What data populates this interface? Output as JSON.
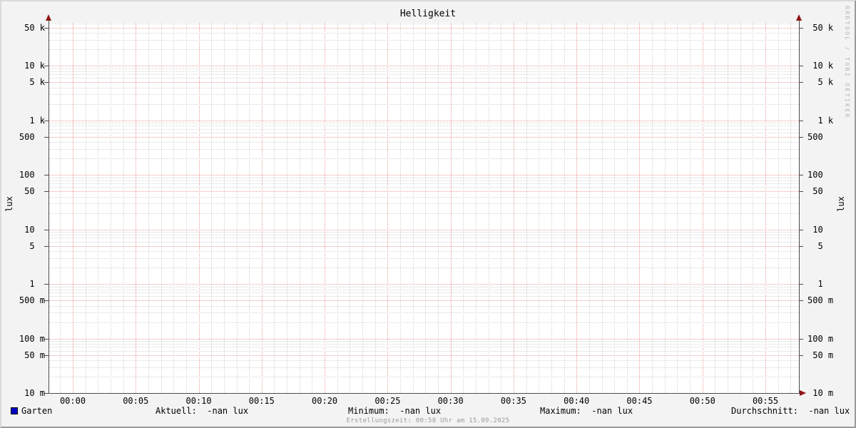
{
  "title": "Helligkeit",
  "watermark": "RRDTOOL / TOBI OETIKER",
  "footer": "Erstellungszeit: 00:58 Uhr am 15.09.2025",
  "axis": {
    "left_unit": "lux",
    "right_unit": "lux"
  },
  "legend": {
    "series_label": "Garten",
    "series_color": "#0000c4",
    "stats": [
      {
        "label": "Aktuell:",
        "value": "-nan lux"
      },
      {
        "label": "Minimum:",
        "value": "-nan lux"
      },
      {
        "label": "Maximum:",
        "value": "-nan lux"
      },
      {
        "label": "Durchschnitt:",
        "value": "-nan lux"
      }
    ]
  },
  "chart_data": {
    "type": "line",
    "title": "Helligkeit",
    "xlabel": "",
    "ylabel": "lux",
    "y_scale": "log",
    "ylim": [
      0.01,
      60000
    ],
    "grid": true,
    "legend_position": "bottom",
    "x_ticks": [
      "00:00",
      "00:05",
      "00:10",
      "00:15",
      "00:20",
      "00:25",
      "00:30",
      "00:35",
      "00:40",
      "00:45",
      "00:50",
      "00:55"
    ],
    "x_minor_step_minutes": 1,
    "x_major_step_minutes": 5,
    "y_ticks": [
      {
        "value": 50000,
        "label": " 50 k"
      },
      {
        "value": 10000,
        "label": " 10 k"
      },
      {
        "value": 5000,
        "label": "  5 k"
      },
      {
        "value": 1000,
        "label": "  1 k"
      },
      {
        "value": 500,
        "label": "500  "
      },
      {
        "value": 100,
        "label": "100  "
      },
      {
        "value": 50,
        "label": " 50  "
      },
      {
        "value": 10,
        "label": " 10  "
      },
      {
        "value": 5,
        "label": "  5  "
      },
      {
        "value": 1,
        "label": "  1  "
      },
      {
        "value": 0.5,
        "label": "500 m"
      },
      {
        "value": 0.1,
        "label": "100 m"
      },
      {
        "value": 0.05,
        "label": " 50 m"
      },
      {
        "value": 0.01,
        "label": " 10 m"
      }
    ],
    "series": [
      {
        "name": "Garten",
        "color": "#0000c4",
        "values": [],
        "note": "no data drawn, all statistics are -nan"
      }
    ],
    "stats": {
      "aktuell": "-nan lux",
      "minimum": "-nan lux",
      "maximum": "-nan lux",
      "durchschnitt": "-nan lux"
    }
  }
}
